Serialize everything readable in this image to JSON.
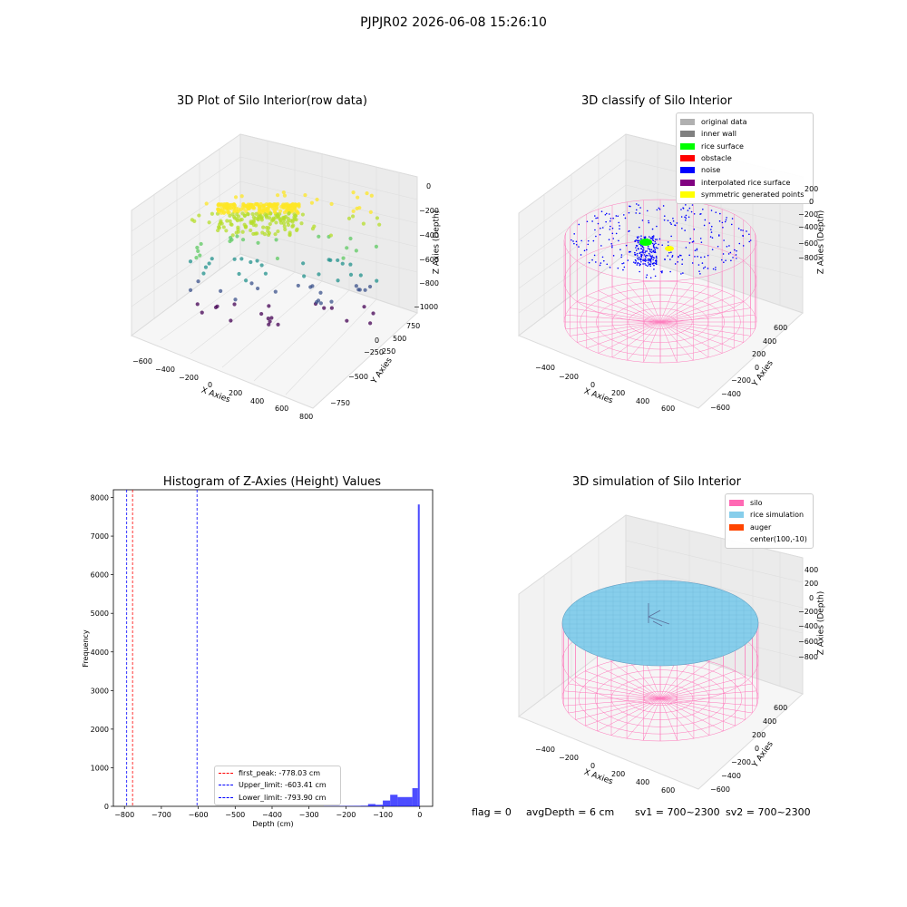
{
  "suptitle": "PJPJR02 2026-06-08 15:26:10",
  "status": {
    "flag": "flag = 0",
    "avg_depth": "avgDepth = 6 cm",
    "sv1": "sv1 = 700~2300",
    "sv2": "sv2 = 700~2300"
  },
  "chart_data": [
    {
      "type": "scatter",
      "title": "3D Plot of Silo Interior(row data)",
      "xlabel": "X Axies",
      "ylabel": "Y Axies",
      "zlabel": "Z Axies (Depth)",
      "x_ticks": [
        "−600",
        "−400",
        "−200",
        "0",
        "200",
        "400",
        "600",
        "800"
      ],
      "y_ticks": [
        "−750",
        "−500",
        "−250",
        "0",
        "250",
        "500",
        "750"
      ],
      "z_ticks": [
        "0",
        "−200",
        "−400",
        "−600",
        "−800",
        "−1000"
      ],
      "xlim": [
        -650,
        800
      ],
      "ylim": [
        -800,
        800
      ],
      "zlim": [
        -1000,
        0
      ],
      "colormap": "viridis"
    },
    {
      "type": "scatter",
      "title": "3D classify of Silo Interior",
      "xlabel": "X Axies",
      "ylabel": "Y Axies",
      "zlabel": "Z Axies (Depth)",
      "x_ticks": [
        "−400",
        "−200",
        "0",
        "200",
        "400",
        "600"
      ],
      "y_ticks": [
        "−600",
        "−400",
        "−200",
        "0",
        "200",
        "400",
        "600"
      ],
      "z_ticks": [
        "200",
        "0",
        "−200",
        "−400",
        "−600",
        "−800"
      ],
      "xlim": [
        -600,
        700
      ],
      "ylim": [
        -650,
        650
      ],
      "zlim": [
        -900,
        300
      ],
      "legend_position": "top-right",
      "legend": [
        {
          "label": "original data",
          "color": "#b0b0b0"
        },
        {
          "label": "inner wall",
          "color": "#808080"
        },
        {
          "label": "rice surface",
          "color": "#00ff00"
        },
        {
          "label": "obstacle",
          "color": "#ff0000"
        },
        {
          "label": "noise",
          "color": "#0000ff"
        },
        {
          "label": "interpolated rice surface",
          "color": "#800080"
        },
        {
          "label": "symmetric generated points",
          "color": "#ffff00"
        }
      ]
    },
    {
      "type": "bar",
      "title": "Histogram of Z-Axies (Height) Values",
      "xlabel": "Depth (cm)",
      "ylabel": "Frequency",
      "xlim": [
        -830,
        35
      ],
      "ylim": [
        0,
        8200
      ],
      "x_ticks": [
        -800,
        -700,
        -600,
        -500,
        -400,
        -300,
        -200,
        -100,
        0
      ],
      "y_ticks": [
        0,
        1000,
        2000,
        3000,
        4000,
        5000,
        6000,
        7000,
        8000
      ],
      "bar_color": "#0000ff",
      "bins": [
        {
          "x0": -260,
          "x1": -240,
          "value": 6
        },
        {
          "x0": -240,
          "x1": -220,
          "value": 8
        },
        {
          "x0": -220,
          "x1": -200,
          "value": 8
        },
        {
          "x0": -200,
          "x1": -180,
          "value": 10
        },
        {
          "x0": -180,
          "x1": -160,
          "value": 12
        },
        {
          "x0": -160,
          "x1": -140,
          "value": 15
        },
        {
          "x0": -140,
          "x1": -120,
          "value": 60
        },
        {
          "x0": -120,
          "x1": -100,
          "value": 40
        },
        {
          "x0": -100,
          "x1": -80,
          "value": 150
        },
        {
          "x0": -80,
          "x1": -60,
          "value": 300
        },
        {
          "x0": -60,
          "x1": -40,
          "value": 240
        },
        {
          "x0": -40,
          "x1": -20,
          "value": 240
        },
        {
          "x0": -20,
          "x1": -5,
          "value": 470
        },
        {
          "x0": -5,
          "x1": 0,
          "value": 7820
        }
      ],
      "vlines": [
        {
          "label": "first_peak: -778.03 cm",
          "x": -778.03,
          "color": "#ff0000"
        },
        {
          "label": "Upper_limit: -603.41 cm",
          "x": -603.41,
          "color": "#0000ff"
        },
        {
          "label": "Lower_limit: -793.90 cm",
          "x": -793.9,
          "color": "#0000ff"
        }
      ],
      "legend_position": "lower-center"
    },
    {
      "type": "area",
      "title": "3D simulation of Silo Interior",
      "xlabel": "X Axies",
      "ylabel": "Y Axies",
      "zlabel": "Z Axies (Depth)",
      "x_ticks": [
        "−400",
        "−200",
        "0",
        "200",
        "400",
        "600"
      ],
      "y_ticks": [
        "−600",
        "−400",
        "−200",
        "0",
        "200",
        "400",
        "600"
      ],
      "z_ticks": [
        "400",
        "200",
        "0",
        "−200",
        "−400",
        "−600",
        "−800"
      ],
      "legend_position": "top-right",
      "legend": [
        {
          "label": "silo",
          "color": "#ff69b4"
        },
        {
          "label": "rice simulation",
          "color": "#87ceeb"
        },
        {
          "label": "auger",
          "color": "#ff4500"
        },
        {
          "label": "center(100,-10)",
          "color": ""
        }
      ]
    }
  ]
}
